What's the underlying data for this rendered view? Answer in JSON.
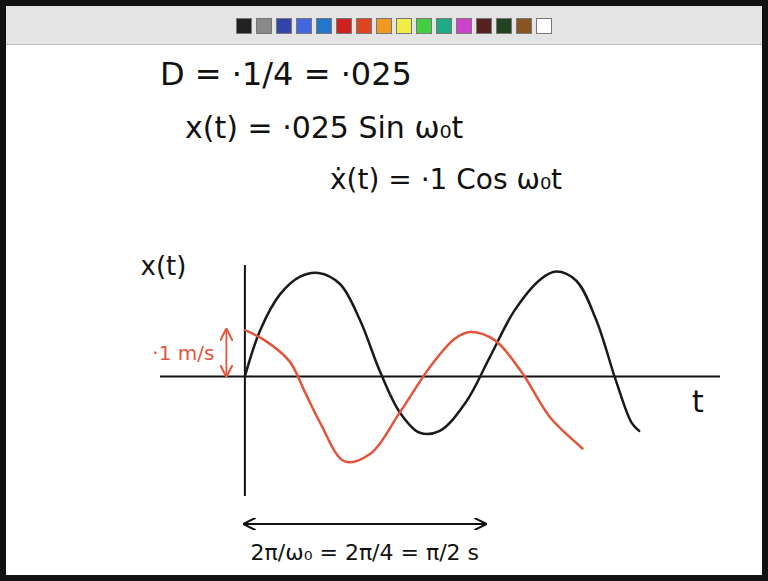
{
  "chart_data": {
    "type": "line",
    "equations": [
      "D = ·1/4 = ·025",
      "x(t) = ·025 Sin ω₀t",
      "ẋ(t) = ·1 Cos ω₀t"
    ],
    "x_label": "t",
    "y_label": "x(t)",
    "xlim": [
      -0.55,
      3.1
    ],
    "ylim": [
      -0.26,
      0.24
    ],
    "tick_labels": false,
    "grid": false,
    "series": [
      {
        "color": "#1a1a1a",
        "x": [
          0,
          0.1,
          0.23,
          0.36,
          0.48,
          0.62,
          0.75,
          0.88,
          1.01,
          1.14,
          1.27,
          1.44,
          1.6,
          1.76,
          1.93,
          2.03,
          2.16,
          2.29,
          2.42,
          2.52,
          2.57
        ],
        "values": [
          0,
          0.1,
          0.178,
          0.216,
          0.224,
          0.2,
          0.122,
          0.011,
          -0.078,
          -0.122,
          -0.118,
          -0.056,
          0.044,
          0.144,
          0.211,
          0.227,
          0.207,
          0.122,
          -0.011,
          -0.1,
          -0.118
        ]
      },
      {
        "color": "#e2553c",
        "x": [
          0,
          0.13,
          0.29,
          0.39,
          0.49,
          0.65,
          0.82,
          1.01,
          1.21,
          1.37,
          1.47,
          1.63,
          1.8,
          1.99,
          2.16,
          2.2
        ],
        "values": [
          0.1,
          0.078,
          0.033,
          -0.033,
          -0.1,
          -0.184,
          -0.167,
          -0.078,
          0.022,
          0.082,
          0.096,
          0.078,
          0.011,
          -0.089,
          -0.144,
          -0.156
        ]
      }
    ],
    "amplitude_annotation": {
      "text": "·1 m/s",
      "value": 0.1,
      "color": "#e2553c"
    },
    "period_annotation": {
      "text": "2π/ω₀ = 2π/4 = π/2 s",
      "from": 0,
      "to": 1.57
    }
  }
}
